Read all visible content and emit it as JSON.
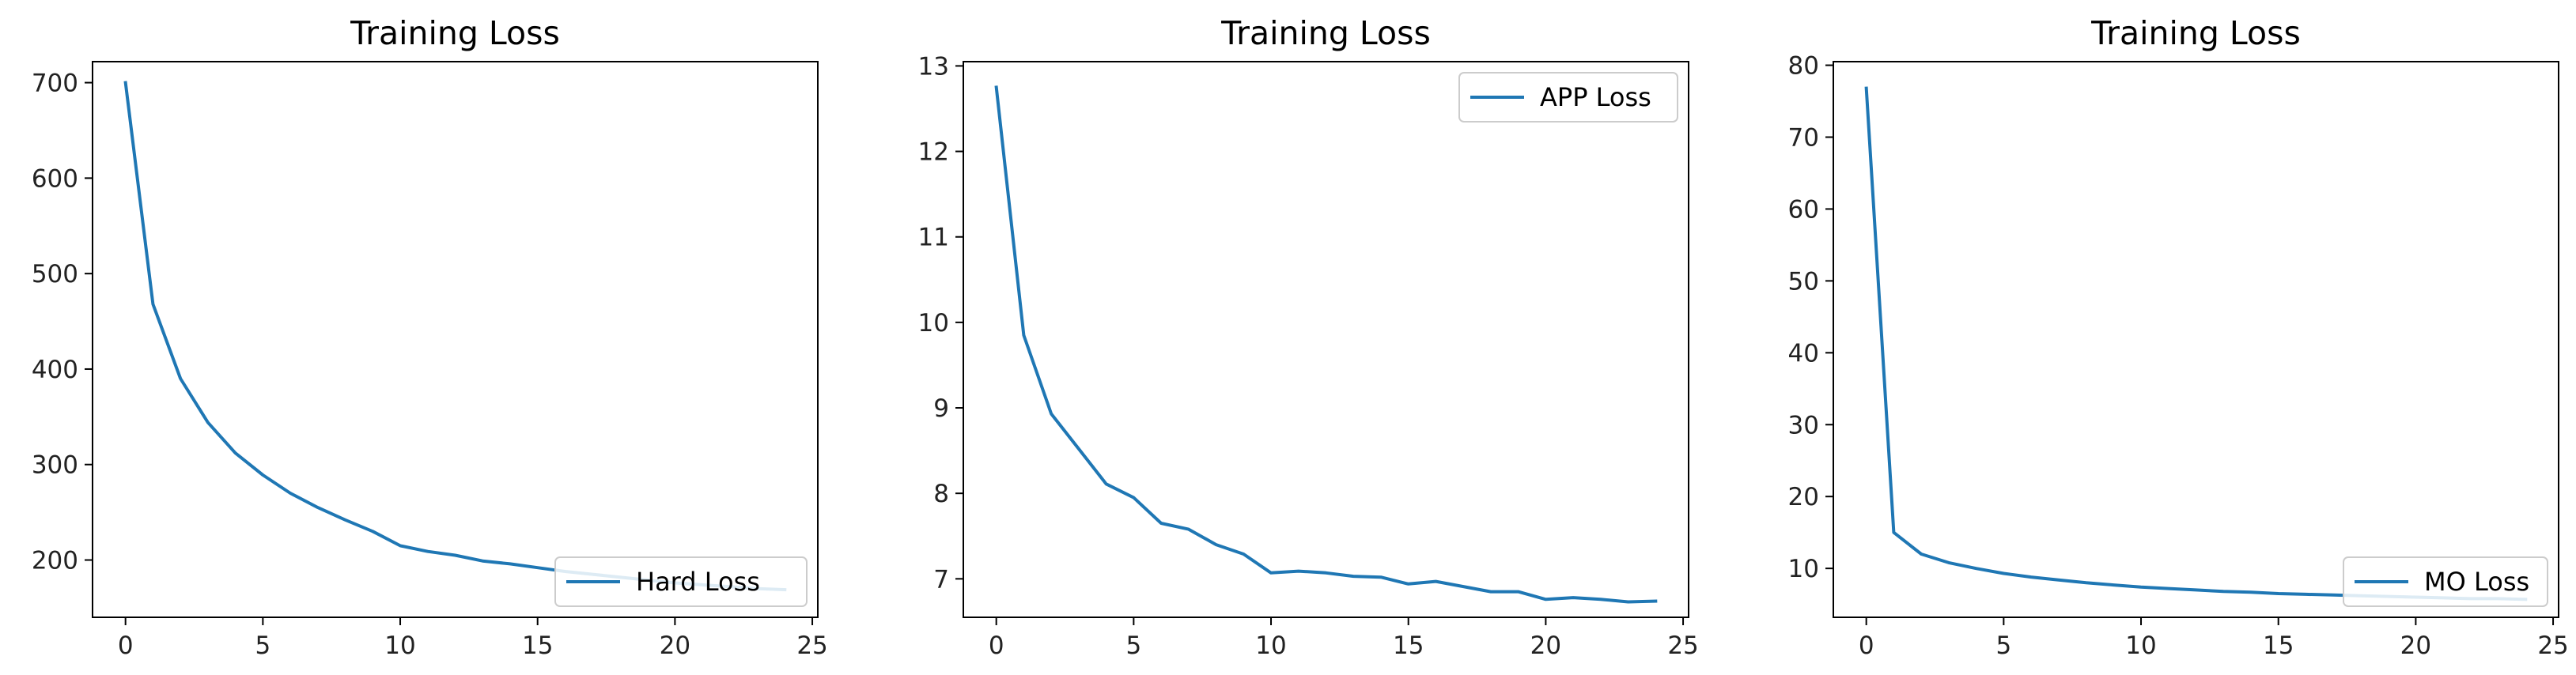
{
  "line_color": "#1f77b4",
  "chart_data": [
    {
      "type": "line",
      "title": "Training Loss",
      "xlabel": "",
      "ylabel": "",
      "xlim": [
        -1.2,
        25.2
      ],
      "ylim": [
        140,
        722
      ],
      "xticks": [
        0,
        5,
        10,
        15,
        20,
        25
      ],
      "yticks": [
        200,
        300,
        400,
        500,
        600,
        700
      ],
      "legend_position": "lower-right",
      "grid": false,
      "series": [
        {
          "name": "Hard Loss",
          "x": [
            0,
            1,
            2,
            3,
            4,
            5,
            6,
            7,
            8,
            9,
            10,
            11,
            12,
            13,
            14,
            15,
            16,
            17,
            18,
            19,
            20,
            21,
            22,
            23,
            24
          ],
          "y": [
            700,
            468,
            390,
            344,
            312,
            289,
            270,
            255,
            242,
            230,
            215,
            209,
            205,
            199,
            196,
            192,
            188,
            185,
            182,
            179,
            176,
            174,
            172,
            170,
            169
          ]
        }
      ]
    },
    {
      "type": "line",
      "title": "Training Loss",
      "xlabel": "",
      "ylabel": "",
      "xlim": [
        -1.2,
        25.2
      ],
      "ylim": [
        6.55,
        13.05
      ],
      "xticks": [
        0,
        5,
        10,
        15,
        20,
        25
      ],
      "yticks": [
        7,
        8,
        9,
        10,
        11,
        12,
        13
      ],
      "legend_position": "upper-right",
      "grid": false,
      "series": [
        {
          "name": "APP Loss",
          "x": [
            0,
            1,
            2,
            3,
            4,
            5,
            6,
            7,
            8,
            9,
            10,
            11,
            12,
            13,
            14,
            15,
            16,
            17,
            18,
            19,
            20,
            21,
            22,
            23,
            24
          ],
          "y": [
            12.75,
            9.85,
            8.93,
            8.52,
            8.11,
            7.95,
            7.65,
            7.58,
            7.4,
            7.29,
            7.07,
            7.09,
            7.07,
            7.03,
            7.02,
            6.94,
            6.97,
            6.91,
            6.85,
            6.85,
            6.76,
            6.78,
            6.76,
            6.73,
            6.74
          ]
        }
      ]
    },
    {
      "type": "line",
      "title": "Training Loss",
      "xlabel": "",
      "ylabel": "",
      "xlim": [
        -1.2,
        25.2
      ],
      "ylim": [
        3.2,
        80.5
      ],
      "xticks": [
        0,
        5,
        10,
        15,
        20,
        25
      ],
      "yticks": [
        10,
        20,
        30,
        40,
        50,
        60,
        70,
        80
      ],
      "legend_position": "lower-right",
      "grid": false,
      "series": [
        {
          "name": "MO Loss",
          "x": [
            0,
            1,
            2,
            3,
            4,
            5,
            6,
            7,
            8,
            9,
            10,
            11,
            12,
            13,
            14,
            15,
            16,
            17,
            18,
            19,
            20,
            21,
            22,
            23,
            24
          ],
          "y": [
            76.8,
            15.0,
            12.0,
            10.8,
            10.0,
            9.3,
            8.8,
            8.4,
            8.0,
            7.7,
            7.4,
            7.2,
            7.0,
            6.8,
            6.7,
            6.5,
            6.4,
            6.3,
            6.2,
            6.1,
            6.0,
            5.9,
            5.8,
            5.8,
            5.7
          ]
        }
      ]
    }
  ]
}
